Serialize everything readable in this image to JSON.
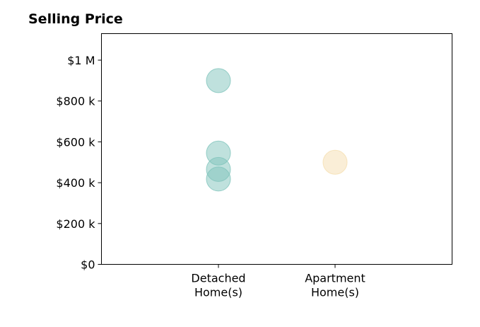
{
  "chart_data": {
    "type": "scatter",
    "title": "Selling Price",
    "xlabel": "",
    "ylabel": "",
    "categories": [
      [
        "Detached",
        "Home(s)"
      ],
      [
        "Apartment",
        "Home(s)"
      ]
    ],
    "series": [
      {
        "category_index": 0,
        "values": [
          900000,
          545000,
          465000,
          418000
        ],
        "color": "#7fc4bc"
      },
      {
        "category_index": 1,
        "values": [
          500000
        ],
        "color": "#f5deb0"
      }
    ],
    "ylim": [
      0,
      1130000
    ],
    "yticks": [
      0,
      200000,
      400000,
      600000,
      800000,
      1000000
    ],
    "ytick_labels": [
      "$0",
      "$200 k",
      "$400 k",
      "$600 k",
      "$800 k",
      "$1 M"
    ],
    "grid": false,
    "legend": "none"
  }
}
